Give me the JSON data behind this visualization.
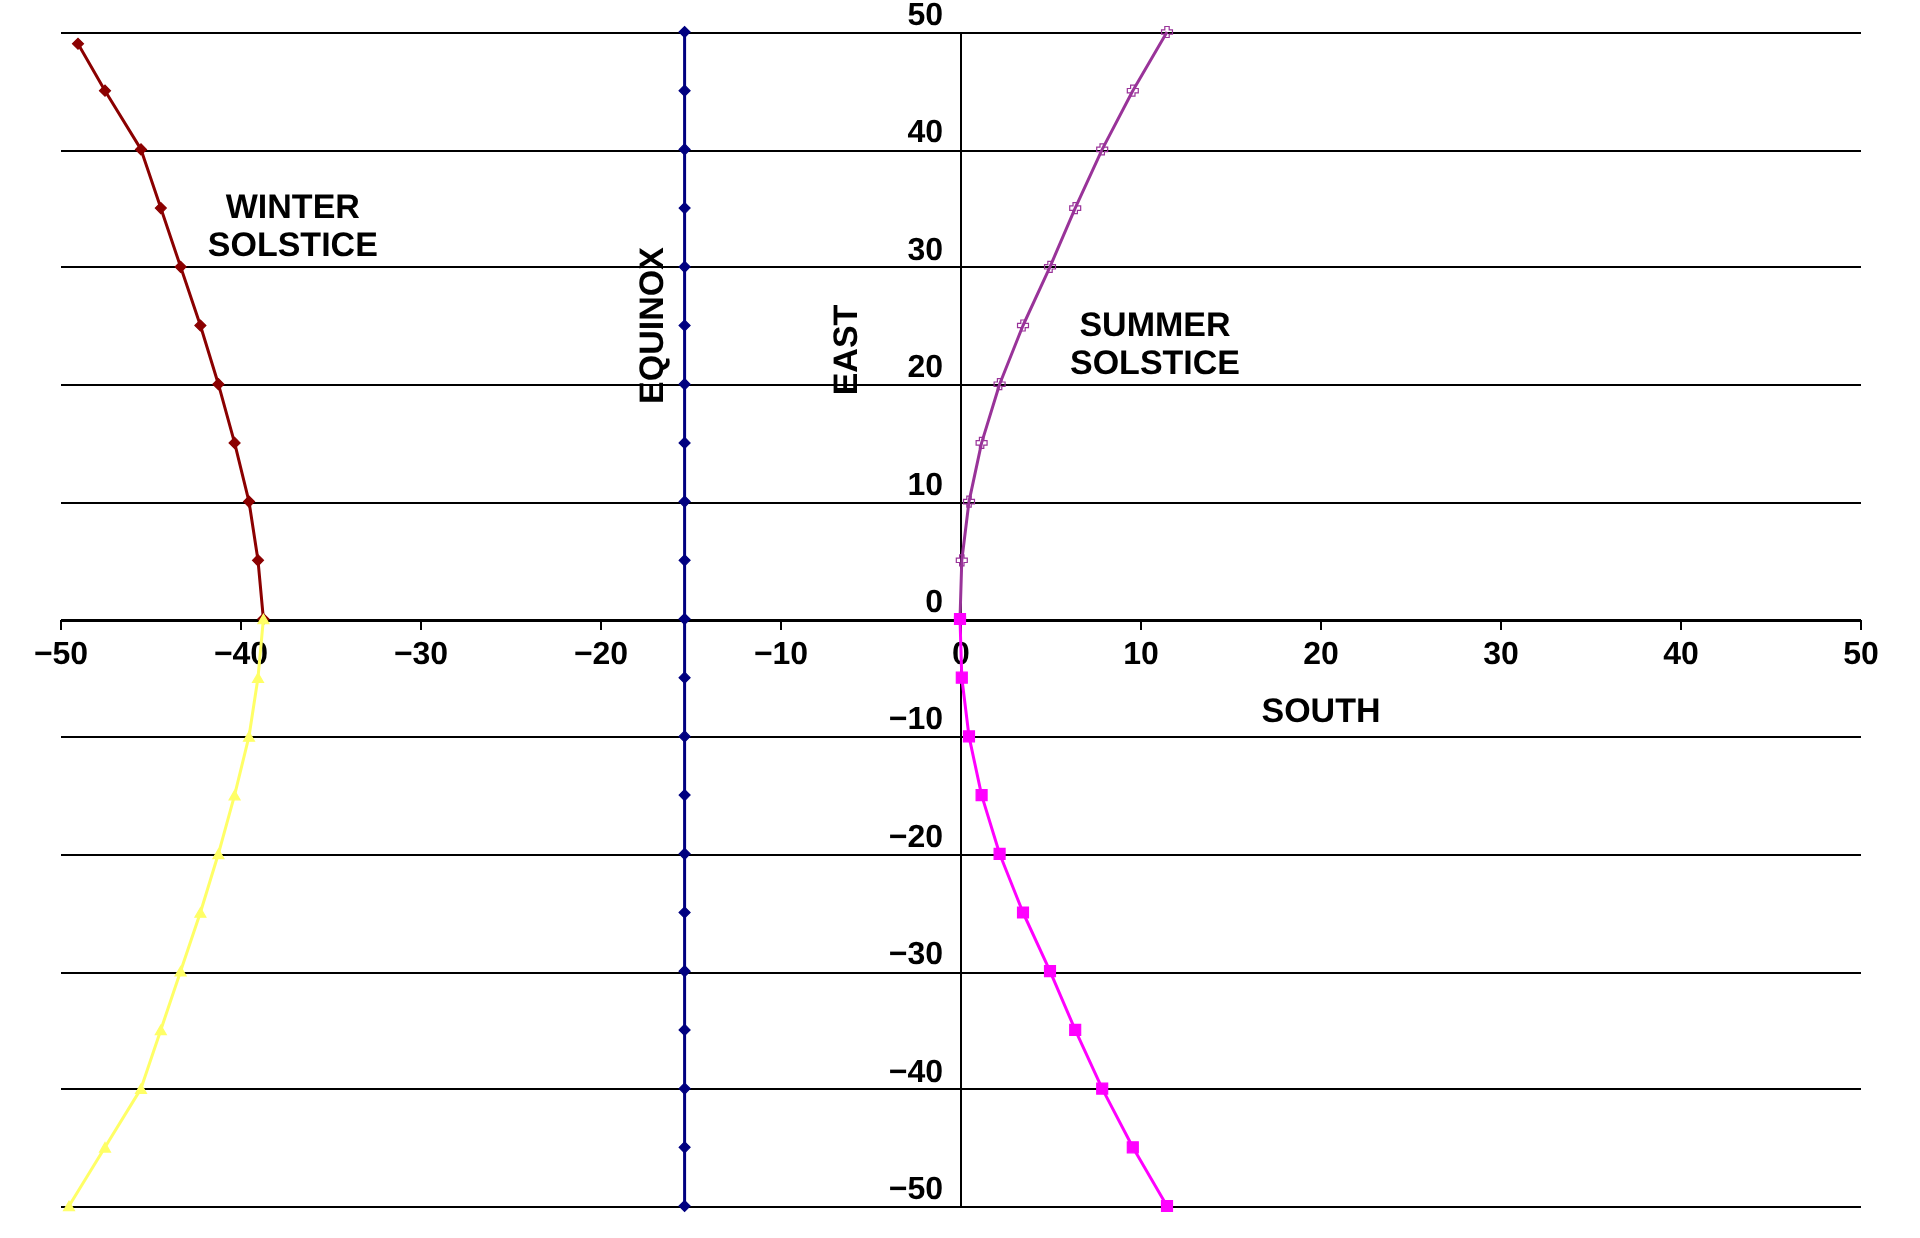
{
  "chart_data": {
    "type": "line",
    "xlabel": "SOUTH",
    "ylabel": "EAST",
    "xlim": [
      -50,
      50
    ],
    "xticks": [
      -50,
      -40,
      -30,
      -20,
      -10,
      0,
      10,
      20,
      30,
      40,
      50
    ],
    "ylim": [
      -50,
      50
    ],
    "yticks": [
      -50,
      -40,
      -30,
      -20,
      -10,
      0,
      10,
      20,
      30,
      40,
      50
    ],
    "grid": "y",
    "series": [
      {
        "name": "WINTER SOLSTICE",
        "color": "#8b0000",
        "marker": "diamond",
        "x": [
          -49,
          -47.5,
          -45.5,
          -44.4,
          -43.3,
          -42.2,
          -41.2,
          -40.3,
          -39.5,
          -39,
          -38.7
        ],
        "values": [
          49,
          45,
          40,
          35,
          30,
          25,
          20,
          15,
          10,
          5,
          0
        ]
      },
      {
        "color": "#ffff66",
        "marker": "triangle",
        "x": [
          -38.7,
          -39,
          -39.5,
          -40.3,
          -41.2,
          -42.2,
          -43.3,
          -44.4,
          -45.5,
          -47.5,
          -49.5
        ],
        "values": [
          0,
          -5,
          -10,
          -15,
          -20,
          -25,
          -30,
          -35,
          -40,
          -45,
          -50
        ]
      },
      {
        "name": "EQUINOX",
        "color": "#000080",
        "marker": "diamond",
        "x": [
          -15.3,
          -15.3,
          -15.3,
          -15.3,
          -15.3,
          -15.3,
          -15.3,
          -15.3,
          -15.3,
          -15.3,
          -15.3,
          -15.3,
          -15.3,
          -15.3,
          -15.3,
          -15.3,
          -15.3,
          -15.3,
          -15.3,
          -15.3,
          -15.3
        ],
        "values": [
          -50,
          -45,
          -40,
          -35,
          -30,
          -25,
          -20,
          -15,
          -10,
          -5,
          0,
          5,
          10,
          15,
          20,
          25,
          30,
          35,
          40,
          45,
          50
        ]
      },
      {
        "name": "SUMMER SOLSTICE",
        "color": "#993399",
        "marker": "cross",
        "x": [
          0,
          0.1,
          0.5,
          1.2,
          2.2,
          3.5,
          5,
          6.4,
          7.9,
          9.6,
          11.5
        ],
        "values": [
          0,
          5,
          10,
          15,
          20,
          25,
          30,
          35,
          40,
          45,
          50
        ]
      },
      {
        "color": "#ff00ff",
        "marker": "square",
        "x": [
          0,
          0.1,
          0.5,
          1.2,
          2.2,
          3.5,
          5,
          6.4,
          7.9,
          9.6,
          11.5
        ],
        "values": [
          0,
          -5,
          -10,
          -15,
          -20,
          -25,
          -30,
          -35,
          -40,
          -45,
          -50
        ]
      }
    ]
  }
}
